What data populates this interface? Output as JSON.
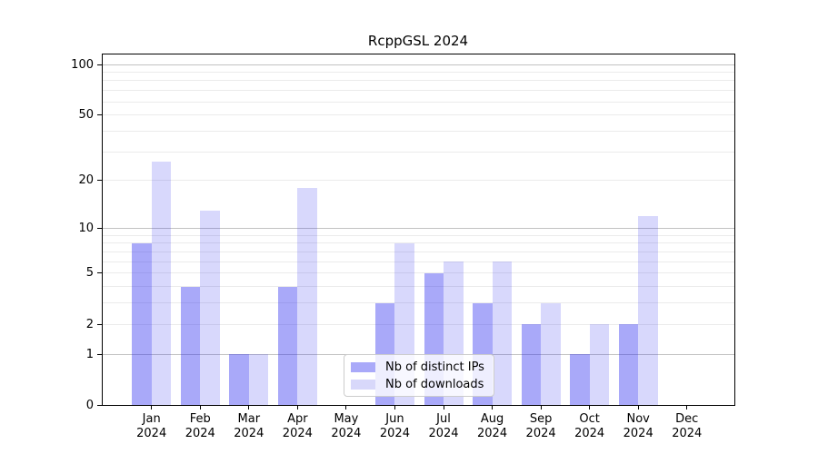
{
  "title": "RcppGSL 2024",
  "chart_data": {
    "type": "bar",
    "title": "RcppGSL 2024",
    "categories": [
      "Jan",
      "Feb",
      "Mar",
      "Apr",
      "May",
      "Jun",
      "Jul",
      "Aug",
      "Sep",
      "Oct",
      "Nov",
      "Dec"
    ],
    "x_year_suffix": "2024",
    "series": [
      {
        "name": "Nb of distinct IPs",
        "values": [
          8,
          4,
          1,
          4,
          0,
          3,
          5,
          3,
          2,
          1,
          2,
          0
        ],
        "color_on_white": "#a9a9f9",
        "fill_rgba": "rgba(40,40,240,0.40)"
      },
      {
        "name": "Nb of downloads",
        "values": [
          26,
          13,
          1,
          18,
          0,
          8,
          6,
          6,
          3,
          2,
          12,
          0
        ],
        "color_on_white": "#d8d8fa",
        "fill_rgba": "rgba(40,40,240,0.18)"
      }
    ],
    "yscale": "log1p",
    "ylim": [
      0,
      117
    ],
    "yticks": [
      0,
      1,
      2,
      5,
      10,
      20,
      50,
      100
    ],
    "grid": {
      "major_values": [
        1,
        10,
        100
      ],
      "minor_values": [
        2,
        3,
        4,
        5,
        6,
        7,
        8,
        9,
        20,
        30,
        40,
        50,
        60,
        70,
        80,
        90
      ],
      "major_color": "#c2c2c2",
      "minor_color": "#ebebeb"
    },
    "legend": {
      "position": "lower-center-inside",
      "entries": [
        "Nb of distinct IPs",
        "Nb of downloads"
      ]
    },
    "xlabel": "",
    "ylabel": ""
  },
  "colors": {
    "axis": "#000000",
    "text": "#000000",
    "legend_border": "#cccccc",
    "legend_bg": "rgba(255,255,255,0.8)",
    "background": "#ffffff"
  }
}
